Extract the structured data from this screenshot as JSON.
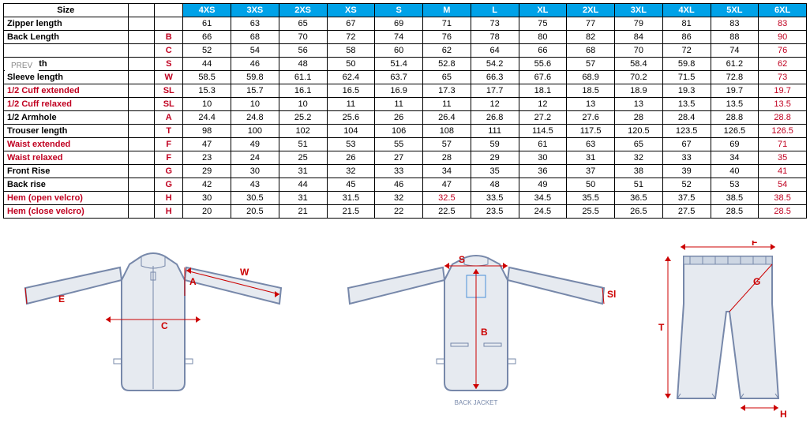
{
  "table": {
    "header_bg": "#00a2e8",
    "size_label": "Size",
    "sizes": [
      "4XS",
      "3XS",
      "2XS",
      "XS",
      "S",
      "M",
      "L",
      "XL",
      "2XL",
      "3XL",
      "4XL",
      "5XL",
      "6XL"
    ],
    "rows": [
      {
        "label": "Zipper length",
        "letter": "",
        "red_label": false,
        "red_letter": false,
        "red_last": true,
        "values": [
          "61",
          "63",
          "65",
          "67",
          "69",
          "71",
          "73",
          "75",
          "77",
          "79",
          "81",
          "83",
          "83"
        ]
      },
      {
        "label": "Back Length",
        "letter": "B",
        "red_label": false,
        "red_letter": true,
        "red_last": true,
        "values": [
          "66",
          "68",
          "70",
          "72",
          "74",
          "76",
          "78",
          "80",
          "82",
          "84",
          "86",
          "88",
          "90"
        ]
      },
      {
        "label": "",
        "letter": "C",
        "red_label": false,
        "red_letter": true,
        "red_last": true,
        "values": [
          "52",
          "54",
          "56",
          "58",
          "60",
          "62",
          "64",
          "66",
          "68",
          "70",
          "72",
          "74",
          "76"
        ]
      },
      {
        "label": "der Width",
        "letter": "S",
        "red_label": false,
        "red_letter": true,
        "red_last": true,
        "values": [
          "44",
          "46",
          "48",
          "50",
          "51.4",
          "52.8",
          "54.2",
          "55.6",
          "57",
          "58.4",
          "59.8",
          "61.2",
          "62"
        ]
      },
      {
        "label": "Sleeve length",
        "letter": "W",
        "red_label": false,
        "red_letter": true,
        "red_last": true,
        "values": [
          "58.5",
          "59.8",
          "61.1",
          "62.4",
          "63.7",
          "65",
          "66.3",
          "67.6",
          "68.9",
          "70.2",
          "71.5",
          "72.8",
          "73"
        ]
      },
      {
        "label": "1/2 Cuff extended",
        "letter": "SL",
        "red_label": true,
        "red_letter": true,
        "red_last": true,
        "values": [
          "15.3",
          "15.7",
          "16.1",
          "16.5",
          "16.9",
          "17.3",
          "17.7",
          "18.1",
          "18.5",
          "18.9",
          "19.3",
          "19.7",
          "19.7"
        ]
      },
      {
        "label": "1/2 Cuff relaxed",
        "letter": "SL",
        "red_label": true,
        "red_letter": true,
        "red_last": true,
        "values": [
          "10",
          "10",
          "10",
          "11",
          "11",
          "11",
          "12",
          "12",
          "13",
          "13",
          "13.5",
          "13.5",
          "13.5"
        ]
      },
      {
        "label": "1/2 Armhole",
        "letter": "A",
        "red_label": false,
        "red_letter": true,
        "red_last": true,
        "values": [
          "24.4",
          "24.8",
          "25.2",
          "25.6",
          "26",
          "26.4",
          "26.8",
          "27.2",
          "27.6",
          "28",
          "28.4",
          "28.8",
          "28.8"
        ]
      },
      {
        "label": "Trouser length",
        "letter": "T",
        "red_label": false,
        "red_letter": true,
        "red_last": true,
        "values": [
          "98",
          "100",
          "102",
          "104",
          "106",
          "108",
          "111",
          "114.5",
          "117.5",
          "120.5",
          "123.5",
          "126.5",
          "126.5"
        ]
      },
      {
        "label": "Waist extended",
        "letter": "F",
        "red_label": true,
        "red_letter": true,
        "red_last": true,
        "values": [
          "47",
          "49",
          "51",
          "53",
          "55",
          "57",
          "59",
          "61",
          "63",
          "65",
          "67",
          "69",
          "71"
        ]
      },
      {
        "label": "Waist relaxed",
        "letter": "F",
        "red_label": true,
        "red_letter": true,
        "red_last": true,
        "values": [
          "23",
          "24",
          "25",
          "26",
          "27",
          "28",
          "29",
          "30",
          "31",
          "32",
          "33",
          "34",
          "35"
        ]
      },
      {
        "label": "Front Rise",
        "letter": "G",
        "red_label": false,
        "red_letter": true,
        "red_last": true,
        "values": [
          "29",
          "30",
          "31",
          "32",
          "33",
          "34",
          "35",
          "36",
          "37",
          "38",
          "39",
          "40",
          "41"
        ]
      },
      {
        "label": "Back rise",
        "letter": "G",
        "red_label": false,
        "red_letter": true,
        "red_last": true,
        "values": [
          "42",
          "43",
          "44",
          "45",
          "46",
          "47",
          "48",
          "49",
          "50",
          "51",
          "52",
          "53",
          "54"
        ]
      },
      {
        "label": "Hem (open velcro)",
        "letter": "H",
        "red_label": true,
        "red_letter": true,
        "red_last": true,
        "values": [
          "30",
          "30.5",
          "31",
          "31.5",
          "32",
          "32.5",
          "33.5",
          "34.5",
          "35.5",
          "36.5",
          "37.5",
          "38.5",
          "38.5"
        ]
      },
      {
        "label": "Hem (close velcro)",
        "letter": "H",
        "red_label": true,
        "red_letter": true,
        "red_last": true,
        "values": [
          "20",
          "20.5",
          "21",
          "21.5",
          "22",
          "22.5",
          "23.5",
          "24.5",
          "25.5",
          "26.5",
          "27.5",
          "28.5",
          "28.5"
        ]
      }
    ]
  },
  "prev_label": "PREV",
  "diagrams": {
    "jacket_front": {
      "labels": {
        "W": "W",
        "A": "A",
        "E": "E",
        "C": "C"
      }
    },
    "jacket_back": {
      "labels": {
        "S": "S",
        "B": "B",
        "Sl": "Sl"
      },
      "caption": "BACK JACKET"
    },
    "trouser": {
      "labels": {
        "F": "F",
        "G": "G",
        "T": "T",
        "H": "H"
      }
    }
  },
  "colors": {
    "red": "#c00020",
    "header_bg": "#00a2e8",
    "outline": "#7788aa",
    "fill": "#e6eaf0"
  }
}
